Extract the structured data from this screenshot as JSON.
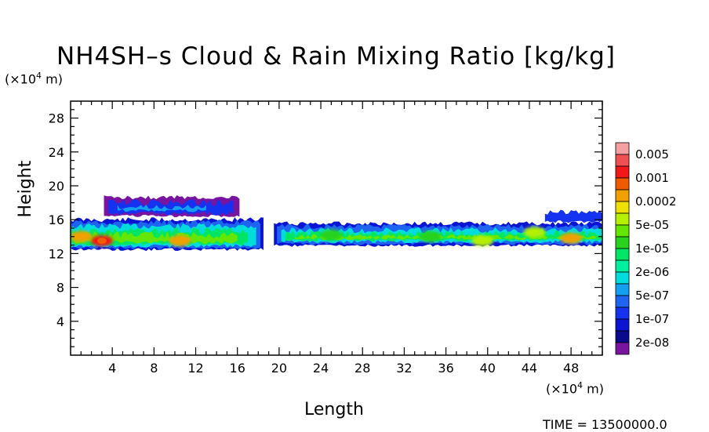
{
  "chart_data": {
    "type": "heatmap",
    "title": "NH4SH–s Cloud & Rain Mixing Ratio [kg/kg]",
    "xlabel": "Length",
    "ylabel": "Height",
    "x_unit_text": "(×10",
    "x_unit_exp": "4",
    "x_unit_suffix": " m)",
    "y_unit_text": "(×10",
    "y_unit_exp": "4",
    "y_unit_suffix": " m)",
    "xlim": [
      0,
      51
    ],
    "ylim": [
      0,
      30
    ],
    "x_ticks": [
      "4",
      "8",
      "12",
      "16",
      "20",
      "24",
      "28",
      "32",
      "36",
      "40",
      "44",
      "48"
    ],
    "y_ticks": [
      "4",
      "8",
      "12",
      "16",
      "20",
      "24",
      "28"
    ],
    "footer": "TIME = 13500000.0",
    "legend": [
      {
        "label": "0.005",
        "color": "#f4a0a0"
      },
      {
        "label": "",
        "color": "#f05050"
      },
      {
        "label": "0.001",
        "color": "#f01818"
      },
      {
        "label": "",
        "color": "#f05a00"
      },
      {
        "label": "0.0002",
        "color": "#f0a000"
      },
      {
        "label": "",
        "color": "#f0e000"
      },
      {
        "label": "5e-05",
        "color": "#b4f000"
      },
      {
        "label": "",
        "color": "#64e600"
      },
      {
        "label": "1e-05",
        "color": "#28d21e"
      },
      {
        "label": "",
        "color": "#00e664"
      },
      {
        "label": "2e-06",
        "color": "#00f0a0"
      },
      {
        "label": "",
        "color": "#00dcdc"
      },
      {
        "label": "5e-07",
        "color": "#14a0f0"
      },
      {
        "label": "",
        "color": "#1e64f0"
      },
      {
        "label": "1e-07",
        "color": "#1432f0"
      },
      {
        "label": "",
        "color": "#0a14d2"
      },
      {
        "label": "2e-08",
        "color": "#0a0a8c"
      },
      {
        "label": "",
        "color": "#7814a0"
      }
    ],
    "cloud_bands": [
      {
        "x": [
          0,
          18.5
        ],
        "ybot": 12.3,
        "ytop": 16.3
      },
      {
        "x": 19.5,
        "x2": 51,
        "ybot": 12.8,
        "ytop": 15.8
      },
      {
        "x": [
          3.5,
          16
        ],
        "ybot": 16.3,
        "ytop": 19.0
      },
      {
        "x": [
          46,
          51
        ],
        "ybot": 15.8,
        "ytop": 17.2
      }
    ],
    "hotspots": [
      {
        "x": 3.0,
        "y": 13.5,
        "level": "0.001"
      },
      {
        "x": 1.0,
        "y": 14.0,
        "level": "0.0002"
      },
      {
        "x": 10.5,
        "y": 13.5,
        "level": "0.0002"
      },
      {
        "x": 48.0,
        "y": 13.8,
        "level": "0.0002"
      },
      {
        "x": 44.5,
        "y": 14.5,
        "level": "5e-05"
      },
      {
        "x": 39.5,
        "y": 13.5,
        "level": "5e-05"
      },
      {
        "x": 25.0,
        "y": 14.2,
        "level": "1e-05"
      },
      {
        "x": 34.5,
        "y": 14.0,
        "level": "1e-05"
      }
    ]
  }
}
